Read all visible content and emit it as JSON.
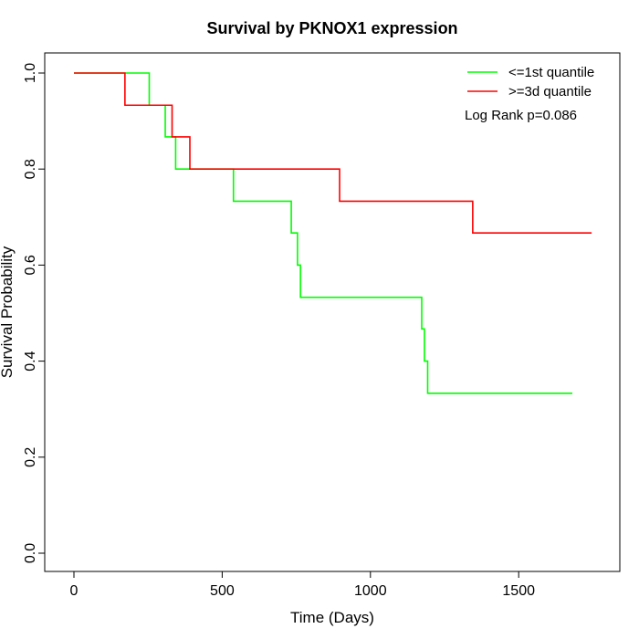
{
  "chart_data": {
    "type": "line",
    "title": "Survival by PKNOX1 expression",
    "xlabel": "Time (Days)",
    "ylabel": "Survival Probability",
    "xlim": [
      0,
      1750
    ],
    "ylim": [
      0,
      1
    ],
    "xticks": [
      0,
      500,
      1000,
      1500
    ],
    "xtick_labels": [
      "0",
      "500",
      "1000",
      "1500"
    ],
    "yticks": [
      0,
      0.2,
      0.4,
      0.6,
      0.8,
      1.0
    ],
    "ytick_labels": [
      "0.0",
      "0.2",
      "0.4",
      "0.6",
      "0.8",
      "1.0"
    ],
    "annotation": "Log Rank p=0.086",
    "legend_position": "top-right",
    "series": [
      {
        "name": "<=1st quantile",
        "color": "#00ff00",
        "steps": [
          [
            0,
            1.0
          ],
          [
            254,
            0.933
          ],
          [
            308,
            0.867
          ],
          [
            343,
            0.8
          ],
          [
            538,
            0.733
          ],
          [
            733,
            0.667
          ],
          [
            754,
            0.6
          ],
          [
            764,
            0.533
          ],
          [
            1173,
            0.467
          ],
          [
            1182,
            0.4
          ],
          [
            1193,
            0.333
          ]
        ],
        "end": 1681
      },
      {
        "name": ">=3d quantile",
        "color": "#ff0000",
        "steps": [
          [
            0,
            1.0
          ],
          [
            172,
            0.933
          ],
          [
            331,
            0.867
          ],
          [
            391,
            0.8
          ],
          [
            896,
            0.733
          ],
          [
            1345,
            0.667
          ]
        ],
        "end": 1746
      }
    ]
  }
}
